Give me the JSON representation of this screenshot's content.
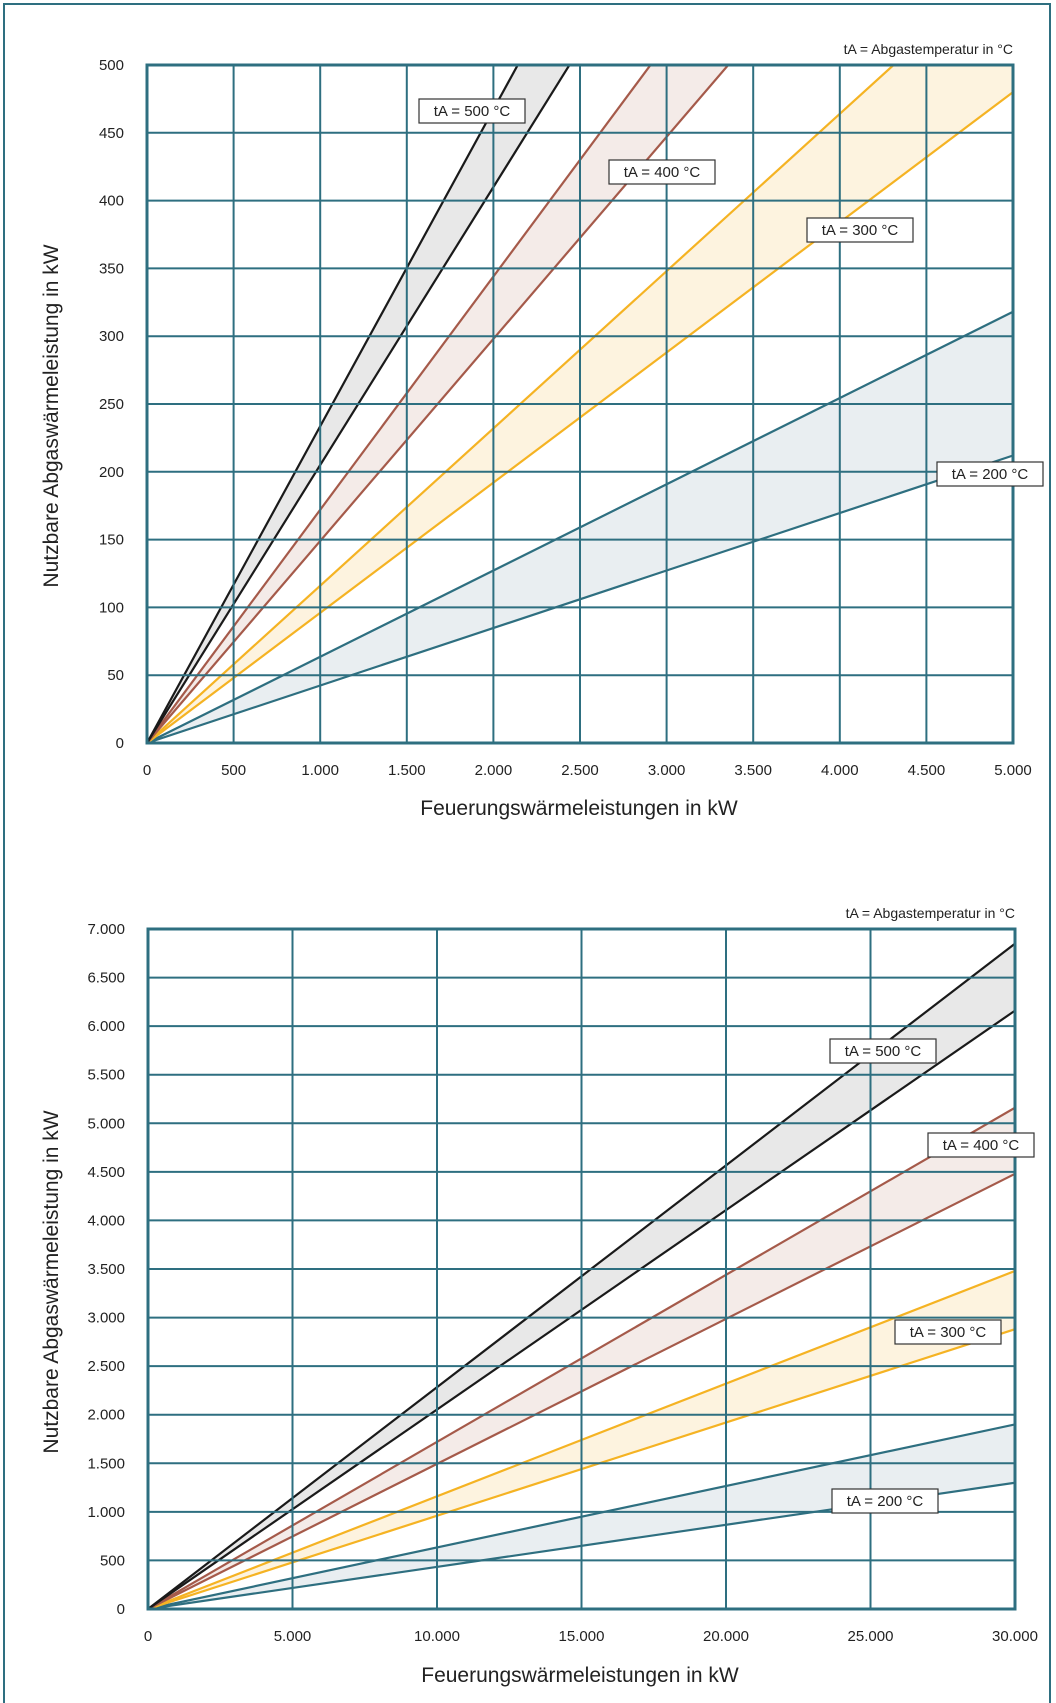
{
  "chart_data": [
    {
      "type": "line",
      "note": "tA = Abgastemperatur in °C",
      "xlabel": "Feuerungswärmeleistungen in kW",
      "ylabel": "Nutzbare Abgaswärmeleistung in kW",
      "xlim": [
        0,
        5000
      ],
      "ylim": [
        0,
        500
      ],
      "x_ticks": [
        0,
        500,
        1000,
        1500,
        2000,
        2500,
        3000,
        3500,
        4000,
        4500,
        5000
      ],
      "x_tick_labels": [
        "0",
        "500",
        "1.000",
        "1.500",
        "2.000",
        "2.500",
        "3.000",
        "3.500",
        "4.000",
        "4.500",
        "5.000"
      ],
      "y_ticks": [
        0,
        50,
        100,
        150,
        200,
        250,
        300,
        350,
        400,
        450,
        500
      ],
      "y_tick_labels": [
        "0",
        "50",
        "100",
        "150",
        "200",
        "250",
        "300",
        "350",
        "400",
        "450",
        "500"
      ],
      "grid": true,
      "series": [
        {
          "name": "tA = 200 °C",
          "color": "#2e6f80",
          "fill": "#e9eef1",
          "x": [
            0,
            5000
          ],
          "upper": [
            0,
            318
          ],
          "lower": [
            0,
            212
          ]
        },
        {
          "name": "tA = 300 °C",
          "color": "#f5b323",
          "fill": "#fdf3df",
          "x": [
            0,
            5000
          ],
          "upper": [
            0,
            580
          ],
          "lower": [
            0,
            480
          ]
        },
        {
          "name": "tA = 400 °C",
          "color": "#a55a4a",
          "fill": "#f4ebe8",
          "x": [
            0,
            5000
          ],
          "upper": [
            0,
            860
          ],
          "lower": [
            0,
            745
          ]
        },
        {
          "name": "tA = 500 °C",
          "color": "#1a1a1a",
          "fill": "#e8e8e8",
          "x": [
            0,
            5000
          ],
          "upper": [
            0,
            1168
          ],
          "lower": [
            0,
            1025
          ]
        }
      ]
    },
    {
      "type": "line",
      "note": "tA = Abgastemperatur in °C",
      "xlabel": "Feuerungswärmeleistungen in kW",
      "ylabel": "Nutzbare Abgaswärmeleistung in kW",
      "xlim": [
        0,
        30000
      ],
      "ylim": [
        0,
        7000
      ],
      "x_ticks": [
        0,
        5000,
        10000,
        15000,
        20000,
        25000,
        30000
      ],
      "x_tick_labels": [
        "0",
        "5.000",
        "10.000",
        "15.000",
        "20.000",
        "25.000",
        "30.000"
      ],
      "y_ticks": [
        0,
        500,
        1000,
        1500,
        2000,
        2500,
        3000,
        3500,
        4000,
        4500,
        5000,
        5500,
        6000,
        6500,
        7000
      ],
      "y_tick_labels": [
        "0",
        "500",
        "1.000",
        "1.500",
        "2.000",
        "2.500",
        "3.000",
        "3.500",
        "4.000",
        "4.500",
        "5.000",
        "5.500",
        "6.000",
        "6.500",
        "7.000"
      ],
      "grid": true,
      "series": [
        {
          "name": "tA = 200 °C",
          "color": "#2e6f80",
          "fill": "#e9eef1",
          "x": [
            0,
            30000
          ],
          "upper": [
            0,
            1900
          ],
          "lower": [
            0,
            1300
          ]
        },
        {
          "name": "tA = 300 °C",
          "color": "#f5b323",
          "fill": "#fdf3df",
          "x": [
            0,
            30000
          ],
          "upper": [
            0,
            3480
          ],
          "lower": [
            0,
            2880
          ]
        },
        {
          "name": "tA = 400 °C",
          "color": "#a55a4a",
          "fill": "#f4ebe8",
          "x": [
            0,
            30000
          ],
          "upper": [
            0,
            5160
          ],
          "lower": [
            0,
            4480
          ]
        },
        {
          "name": "tA = 500 °C",
          "color": "#1a1a1a",
          "fill": "#e8e8e8",
          "x": [
            0,
            30000
          ],
          "upper": [
            0,
            6850
          ],
          "lower": [
            0,
            6160
          ]
        }
      ]
    }
  ]
}
